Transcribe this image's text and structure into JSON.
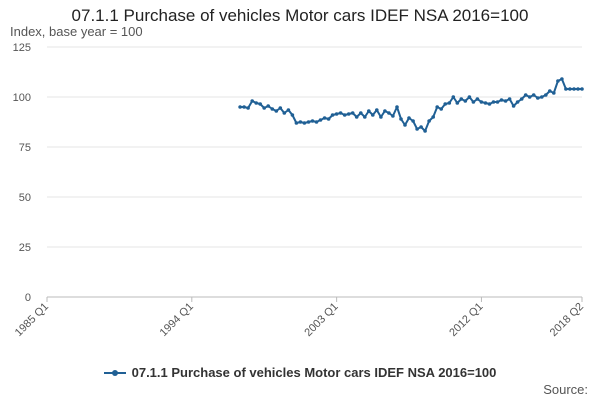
{
  "chart_data": {
    "type": "line",
    "title": "07.1.1 Purchase of vehicles Motor cars IDEF NSA 2016=100",
    "ylabel": "Index, base year = 100",
    "xlabel": "",
    "ylim": [
      0,
      125
    ],
    "yticks": [
      "0",
      "25",
      "50",
      "75",
      "100",
      "125"
    ],
    "xticks": [
      "1985 Q1",
      "1994 Q1",
      "2003 Q1",
      "2012 Q1",
      "2018 Q2"
    ],
    "grid": true,
    "legend_position": "bottom",
    "source_label": "Source:",
    "color": "#206095",
    "series": [
      {
        "name": "07.1.1 Purchase of vehicles Motor cars IDEF NSA 2016=100",
        "x": [
          "1997 Q1",
          "1997 Q2",
          "1997 Q3",
          "1997 Q4",
          "1998 Q1",
          "1998 Q2",
          "1998 Q3",
          "1998 Q4",
          "1999 Q1",
          "1999 Q2",
          "1999 Q3",
          "1999 Q4",
          "2000 Q1",
          "2000 Q2",
          "2000 Q3",
          "2000 Q4",
          "2001 Q1",
          "2001 Q2",
          "2001 Q3",
          "2001 Q4",
          "2002 Q1",
          "2002 Q2",
          "2002 Q3",
          "2002 Q4",
          "2003 Q1",
          "2003 Q2",
          "2003 Q3",
          "2003 Q4",
          "2004 Q1",
          "2004 Q2",
          "2004 Q3",
          "2004 Q4",
          "2005 Q1",
          "2005 Q2",
          "2005 Q3",
          "2005 Q4",
          "2006 Q1",
          "2006 Q2",
          "2006 Q3",
          "2006 Q4",
          "2007 Q1",
          "2007 Q2",
          "2007 Q3",
          "2007 Q4",
          "2008 Q1",
          "2008 Q2",
          "2008 Q3",
          "2008 Q4",
          "2009 Q1",
          "2009 Q2",
          "2009 Q3",
          "2009 Q4",
          "2010 Q1",
          "2010 Q2",
          "2010 Q3",
          "2010 Q4",
          "2011 Q1",
          "2011 Q2",
          "2011 Q3",
          "2011 Q4",
          "2012 Q1",
          "2012 Q2",
          "2012 Q3",
          "2012 Q4",
          "2013 Q1",
          "2013 Q2",
          "2013 Q3",
          "2013 Q4",
          "2014 Q1",
          "2014 Q2",
          "2014 Q3",
          "2014 Q4",
          "2015 Q1",
          "2015 Q2",
          "2015 Q3",
          "2015 Q4",
          "2016 Q1",
          "2016 Q2",
          "2016 Q3",
          "2016 Q4",
          "2017 Q1",
          "2017 Q2",
          "2017 Q3",
          "2017 Q4",
          "2018 Q1",
          "2018 Q2"
        ],
        "values": [
          95,
          95,
          94.5,
          98,
          97,
          96.5,
          94.5,
          95.5,
          94,
          93,
          94.5,
          92,
          93.5,
          91,
          87,
          87.5,
          87,
          87.5,
          88,
          87.5,
          88.5,
          89.5,
          89,
          91,
          91.5,
          92,
          91,
          91.5,
          92,
          90,
          92,
          90,
          93,
          91,
          93.5,
          90,
          93,
          92,
          90.5,
          95,
          89,
          86,
          89.5,
          88,
          84,
          85,
          83,
          88,
          90,
          95,
          94,
          96.5,
          97,
          100,
          97,
          99,
          98,
          100,
          97.5,
          99,
          97.5,
          97,
          96.5,
          97.5,
          97.5,
          98.5,
          98,
          99,
          95.5,
          97.5,
          99,
          101,
          100,
          101,
          99.5,
          100,
          101,
          103,
          102,
          108,
          109,
          104,
          104,
          104,
          104,
          104
        ]
      }
    ]
  }
}
